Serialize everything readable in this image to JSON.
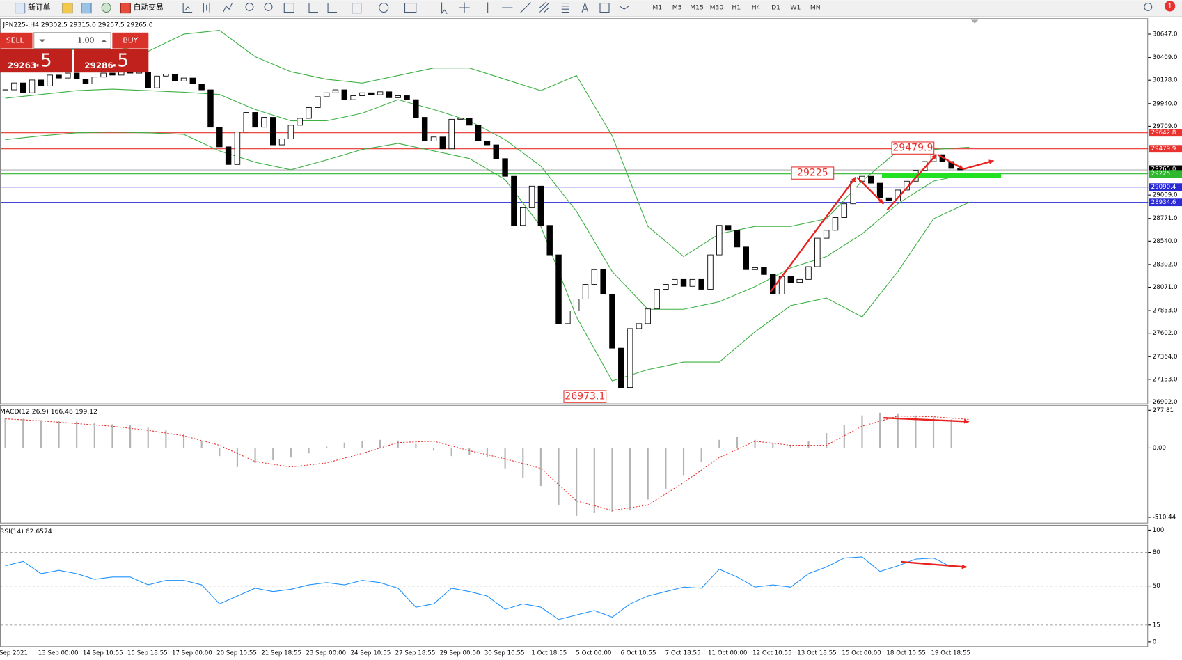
{
  "toolbar": {
    "new_order": "新订单",
    "auto_trading": "自动交易",
    "timeframes": [
      "M1",
      "M5",
      "M15",
      "M30",
      "H1",
      "H4",
      "D1",
      "W1",
      "MN"
    ],
    "notifications": "1"
  },
  "trade_panel": {
    "sell": "SELL",
    "buy": "BUY",
    "volume": "1.00",
    "sell_price": "29263",
    "sell_fraction": ".5",
    "buy_price": "29286",
    "buy_fraction": ".5"
  },
  "time_labels": [
    "Sep 2021",
    "13 Sep 00:00",
    "14 Sep 10:55",
    "15 Sep 18:55",
    "17 Sep 00:00",
    "20 Sep 10:55",
    "21 Sep 18:55",
    "23 Sep 00:00",
    "24 Sep 10:55",
    "27 Sep 18:55",
    "29 Sep 00:00",
    "30 Sep 10:55",
    "1 Oct 18:55",
    "5 Oct 00:00",
    "6 Oct 10:55",
    "7 Oct 18:55",
    "11 Oct 00:00",
    "12 Oct 10:55",
    "13 Oct 18:55",
    "15 Oct 00:00",
    "18 Oct 10:55",
    "19 Oct 18:55"
  ],
  "chart_data": [
    {
      "type": "candlestick",
      "title": "JPN225-,H4  29302.5 29315.0 29257.5 29265.0",
      "close": [
        30080,
        30150,
        30050,
        30180,
        30120,
        30230,
        30200,
        30250,
        30190,
        30140,
        30210,
        30250,
        30230,
        30280,
        30250,
        30260,
        30100,
        30220,
        30240,
        30170,
        30200,
        30140,
        30080,
        29700,
        29500,
        29320,
        29650,
        29850,
        29700,
        29800,
        29520,
        29580,
        29720,
        29790,
        29900,
        30010,
        30050,
        30080,
        29980,
        30020,
        30050,
        30030,
        30060,
        30000,
        30020,
        29980,
        29800,
        29560,
        29600,
        29480,
        29780,
        29790,
        29720,
        29560,
        29520,
        29380,
        29200,
        28700,
        28880,
        29100,
        28700,
        28400,
        27700,
        27830,
        27950,
        28100,
        28250,
        28000,
        27450,
        27050,
        27650,
        27700,
        27850,
        28050,
        28100,
        28150,
        28080,
        28150,
        28050,
        28400,
        28700,
        28650,
        28480,
        28250,
        28270,
        28200,
        28000,
        28180,
        28120,
        28150,
        28280,
        28570,
        28650,
        28780,
        28920,
        29150,
        29200,
        29130,
        28980,
        28950,
        29060,
        29150,
        29260,
        29350,
        29420,
        29350,
        29280,
        29265
      ],
      "upper_band": [
        30417,
        30440,
        30494,
        30517,
        30471,
        30647,
        30686,
        30417,
        30264,
        30187,
        30149,
        30225,
        30302,
        30302,
        30187,
        30072,
        30225,
        29611,
        28690,
        28383,
        28614,
        28690,
        28690,
        28767,
        29151,
        29458,
        29473,
        29496
      ],
      "middle_band": [
        29995,
        30033,
        30072,
        30087,
        30072,
        30056,
        30033,
        29880,
        29765,
        29765,
        29842,
        29980,
        29880,
        29765,
        29573,
        29304,
        28844,
        28230,
        27846,
        27846,
        27923,
        28076,
        28268,
        28383,
        28614,
        28920,
        29151,
        29228
      ],
      "lower_band": [
        29573,
        29611,
        29642,
        29650,
        29642,
        29627,
        29458,
        29343,
        29266,
        29366,
        29473,
        29535,
        29458,
        29381,
        29166,
        28690,
        27769,
        27117,
        27232,
        27309,
        27309,
        27616,
        27884,
        27961,
        27769,
        28230,
        28767,
        28936
      ],
      "colors": {
        "up": "#ffffff",
        "down": "#000000",
        "outline": "#000000",
        "band": "#3cb043"
      },
      "ylim": [
        26887,
        30801
      ],
      "yticks": [
        {
          "value": 30647,
          "label": "30647.0"
        },
        {
          "value": 30409,
          "label": "30409.0"
        },
        {
          "value": 30178,
          "label": "30178.0"
        },
        {
          "value": 29940,
          "label": "29940.0"
        },
        {
          "value": 29709,
          "label": "29709.0"
        },
        {
          "value": 29009,
          "label": "29009.0"
        },
        {
          "value": 28771,
          "label": "28771.0"
        },
        {
          "value": 28540,
          "label": "28540.0"
        },
        {
          "value": 28302,
          "label": "28302.0"
        },
        {
          "value": 28071,
          "label": "28071.0"
        },
        {
          "value": 27833,
          "label": "27833.0"
        },
        {
          "value": 27602,
          "label": "27602.0"
        },
        {
          "value": 27364,
          "label": "27364.0"
        },
        {
          "value": 27133,
          "label": "27133.0"
        },
        {
          "value": 26902,
          "label": "26902.0"
        }
      ],
      "current_price": {
        "value": 29265,
        "label": "29265.0",
        "color": "#999999"
      },
      "levels": [
        {
          "value": 29642.8,
          "color": "#e8322f"
        },
        {
          "value": 29479.9,
          "color": "#e8322f"
        },
        {
          "value": 29225.0,
          "color": "#2db82d"
        },
        {
          "value": 29090.4,
          "color": "#2b2bd6"
        },
        {
          "value": 28934.6,
          "color": "#2b2bd6"
        }
      ],
      "annotations": [
        29479.9,
        29225.0,
        26973.1
      ]
    },
    {
      "type": "macd",
      "title": "MACD(12,26,9) 166.48 199.12",
      "histogram": [
        220,
        215,
        205,
        200,
        195,
        185,
        175,
        170,
        150,
        130,
        100,
        50,
        -60,
        -140,
        -110,
        -90,
        -70,
        -40,
        10,
        40,
        50,
        60,
        55,
        30,
        -20,
        -60,
        -50,
        -70,
        -150,
        -220,
        -280,
        -420,
        -500,
        -480,
        -470,
        -460,
        -380,
        -300,
        -200,
        -100,
        60,
        80,
        60,
        40,
        20,
        50,
        110,
        170,
        240,
        260,
        255,
        240,
        225,
        210
      ],
      "signal": [
        215,
        200,
        180,
        160,
        130,
        90,
        20,
        -100,
        -140,
        -110,
        -40,
        40,
        50,
        -20,
        -80,
        -150,
        -390,
        -460,
        -420,
        -255,
        -70,
        50,
        20,
        20,
        160,
        235,
        230,
        210
      ],
      "colors": {
        "histogram": "#b4b4b4",
        "signal": "#e8322f"
      },
      "ylim": [
        -550,
        311
      ],
      "yticks": [
        277.81,
        {
          "value": 0,
          "label": "0.00"
        },
        -510.44
      ]
    },
    {
      "type": "rsi",
      "title": "RSI(14) 62.6574",
      "values": [
        68,
        72,
        61,
        64,
        61,
        56,
        58,
        58,
        51,
        55,
        55,
        51,
        34,
        41,
        48,
        45,
        47,
        51,
        53,
        51,
        55,
        53,
        48,
        31,
        34,
        48,
        45,
        41,
        29,
        34,
        31,
        20,
        24,
        28,
        22,
        34,
        41,
        45,
        49,
        48,
        65,
        58,
        49,
        51,
        49,
        61,
        67,
        75,
        76,
        63,
        68,
        74,
        75,
        67
      ],
      "color": "#1e90ff",
      "ylim": [
        -4,
        104
      ],
      "yticks": [
        100,
        80,
        50,
        15,
        0
      ]
    }
  ]
}
